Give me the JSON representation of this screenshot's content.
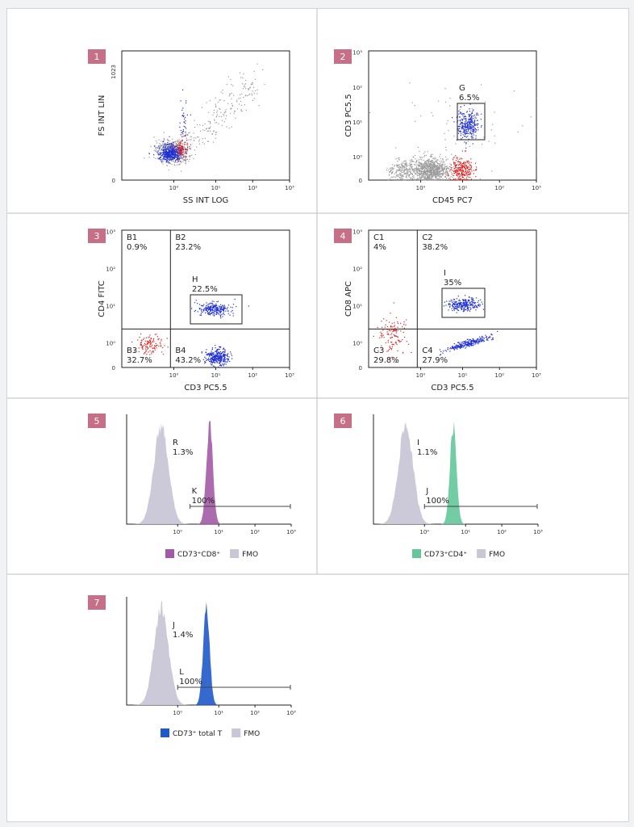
{
  "colors": {
    "badge": "#c76f86",
    "gray_events": "#9a9a9a",
    "blue_events": "#1f2fd6",
    "red_events": "#e02020",
    "fmo": "#c9c6d6",
    "cd8": "#a35aa6",
    "cd4": "#63c79a",
    "total_t": "#1f59c9"
  },
  "chart_data": [
    {
      "id": "1",
      "type": "scatter",
      "xlabel": "SS INT LOG",
      "ylabel": "FS INT LIN",
      "x_ticks": [
        "10⁰",
        "10¹",
        "10²",
        "10³"
      ],
      "y_ticks": [
        "0",
        "1023"
      ],
      "x_scale": "log",
      "xlim": [
        0.1,
        1000
      ],
      "ylim": [
        0,
        1023
      ],
      "gates": []
    },
    {
      "id": "2",
      "type": "scatter",
      "xlabel": "CD45 PC7",
      "ylabel": "CD3 PC5.5",
      "x_ticks": [
        "10⁰",
        "10¹",
        "10²",
        "10³"
      ],
      "y_ticks": [
        "0",
        "10⁰",
        "10¹",
        "10²",
        "10³"
      ],
      "x_scale": "log",
      "y_scale": "log",
      "gates": [
        {
          "name": "G",
          "percent": "6.5%"
        }
      ]
    },
    {
      "id": "3",
      "type": "scatter",
      "xlabel": "CD3 PC5.5",
      "ylabel": "CD4 FITC",
      "x_ticks": [
        "10⁰",
        "10¹",
        "10²",
        "10³"
      ],
      "y_ticks": [
        "0",
        "10⁰",
        "10¹",
        "10²",
        "10³"
      ],
      "quadrants": [
        {
          "name": "B1",
          "percent": "0.9%"
        },
        {
          "name": "B2",
          "percent": "23.2%"
        },
        {
          "name": "B3",
          "percent": "32.7%"
        },
        {
          "name": "B4",
          "percent": "43.2%"
        }
      ],
      "gates": [
        {
          "name": "H",
          "percent": "22.5%"
        }
      ]
    },
    {
      "id": "4",
      "type": "scatter",
      "xlabel": "CD3 PC5.5",
      "ylabel": "CD8 APC",
      "x_ticks": [
        "10⁰",
        "10¹",
        "10²",
        "10³"
      ],
      "y_ticks": [
        "0",
        "10⁰",
        "10¹",
        "10²",
        "10³"
      ],
      "quadrants": [
        {
          "name": "C1",
          "percent": "4%"
        },
        {
          "name": "C2",
          "percent": "38.2%"
        },
        {
          "name": "C3",
          "percent": "29.8%"
        },
        {
          "name": "C4",
          "percent": "27.9%"
        }
      ],
      "gates": [
        {
          "name": "I",
          "percent": "35%"
        }
      ]
    },
    {
      "id": "5",
      "type": "area",
      "x_ticks": [
        "10⁰",
        "10¹",
        "10²",
        "10³"
      ],
      "x_scale": "log",
      "series": [
        {
          "name": "CD73⁺CD8⁺",
          "peak_x": 6.0,
          "color_key": "cd8"
        },
        {
          "name": "FMO",
          "peak_x": 0.4,
          "color_key": "fmo"
        }
      ],
      "gates": [
        {
          "name": "R",
          "percent": "1.3%"
        },
        {
          "name": "K",
          "percent": "100%",
          "range": [
            2.0,
            1000
          ]
        }
      ]
    },
    {
      "id": "6",
      "type": "area",
      "x_ticks": [
        "10⁰",
        "10¹",
        "10²",
        "10³"
      ],
      "x_scale": "log",
      "series": [
        {
          "name": "CD73⁺CD4⁺",
          "peak_x": 5.0,
          "color_key": "cd4"
        },
        {
          "name": "FMO",
          "peak_x": 0.35,
          "color_key": "fmo"
        }
      ],
      "gates": [
        {
          "name": "I",
          "percent": "1.1%"
        },
        {
          "name": "J",
          "percent": "100%",
          "range": [
            1.0,
            1000
          ]
        }
      ]
    },
    {
      "id": "7",
      "type": "area",
      "x_ticks": [
        "10⁰",
        "10¹",
        "10²",
        "10³"
      ],
      "x_scale": "log",
      "series": [
        {
          "name": "CD73⁺ total T",
          "peak_x": 5.0,
          "color_key": "total_t"
        },
        {
          "name": "FMO",
          "peak_x": 0.4,
          "color_key": "fmo"
        }
      ],
      "gates": [
        {
          "name": "J",
          "percent": "1.4%"
        },
        {
          "name": "L",
          "percent": "100%",
          "range": [
            1.0,
            1000
          ]
        }
      ]
    }
  ]
}
